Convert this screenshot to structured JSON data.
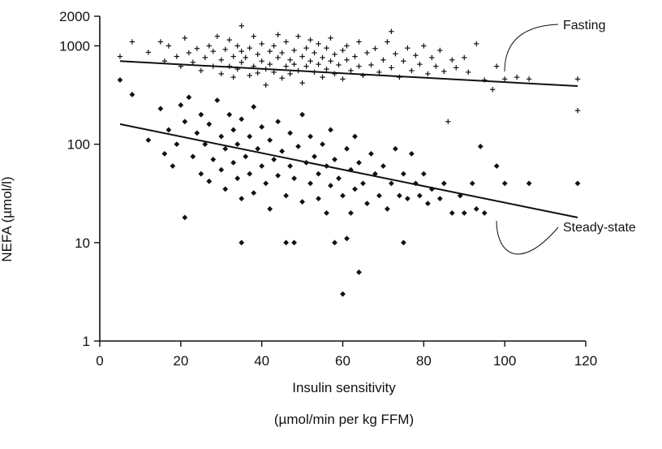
{
  "chart_data": {
    "type": "scatter",
    "title": "",
    "xlabel": "Insulin sensitivity",
    "xlabel_unit": "(µmol/min per kg FFM)",
    "ylabel": "NEFA (µmol/l)",
    "xlim": [
      0,
      120
    ],
    "ylim": [
      1,
      2000
    ],
    "yscale": "log",
    "x_ticks": [
      "0",
      "20",
      "40",
      "60",
      "80",
      "100",
      "120"
    ],
    "y_ticks": [
      "1",
      "10",
      "100",
      "1000",
      "2000"
    ],
    "grid": false,
    "annotations": [
      {
        "text": "Fasting",
        "series": "Fasting"
      },
      {
        "text": "Steady-state",
        "series": "Steady-state"
      }
    ],
    "series": [
      {
        "name": "Fasting",
        "marker": "plus",
        "fit_line": [
          [
            5,
            700
          ],
          [
            118,
            390
          ]
        ],
        "points": [
          [
            5,
            780
          ],
          [
            8,
            1100
          ],
          [
            12,
            860
          ],
          [
            15,
            1100
          ],
          [
            16,
            700
          ],
          [
            17,
            1000
          ],
          [
            19,
            780
          ],
          [
            20,
            620
          ],
          [
            21,
            1200
          ],
          [
            22,
            850
          ],
          [
            23,
            680
          ],
          [
            24,
            940
          ],
          [
            25,
            560
          ],
          [
            26,
            760
          ],
          [
            27,
            1000
          ],
          [
            28,
            620
          ],
          [
            28,
            880
          ],
          [
            29,
            1250
          ],
          [
            30,
            520
          ],
          [
            30,
            720
          ],
          [
            31,
            920
          ],
          [
            32,
            620
          ],
          [
            32,
            1150
          ],
          [
            33,
            480
          ],
          [
            33,
            780
          ],
          [
            34,
            1000
          ],
          [
            34,
            580
          ],
          [
            35,
            880
          ],
          [
            35,
            680
          ],
          [
            35,
            1600
          ],
          [
            36,
            760
          ],
          [
            37,
            500
          ],
          [
            37,
            950
          ],
          [
            38,
            620
          ],
          [
            38,
            1250
          ],
          [
            39,
            820
          ],
          [
            39,
            530
          ],
          [
            40,
            700
          ],
          [
            40,
            1050
          ],
          [
            41,
            580
          ],
          [
            41,
            400
          ],
          [
            42,
            880
          ],
          [
            42,
            650
          ],
          [
            43,
            1000
          ],
          [
            43,
            540
          ],
          [
            44,
            760
          ],
          [
            44,
            1300
          ],
          [
            45,
            470
          ],
          [
            45,
            850
          ],
          [
            46,
            620
          ],
          [
            46,
            1100
          ],
          [
            47,
            720
          ],
          [
            47,
            520
          ],
          [
            48,
            900
          ],
          [
            48,
            650
          ],
          [
            49,
            1250
          ],
          [
            49,
            560
          ],
          [
            50,
            780
          ],
          [
            50,
            420
          ],
          [
            51,
            950
          ],
          [
            51,
            620
          ],
          [
            52,
            700
          ],
          [
            52,
            1150
          ],
          [
            53,
            540
          ],
          [
            53,
            850
          ],
          [
            54,
            650
          ],
          [
            54,
            1050
          ],
          [
            55,
            480
          ],
          [
            55,
            760
          ],
          [
            56,
            950
          ],
          [
            56,
            580
          ],
          [
            57,
            700
          ],
          [
            57,
            1200
          ],
          [
            58,
            520
          ],
          [
            58,
            820
          ],
          [
            59,
            640
          ],
          [
            60,
            900
          ],
          [
            60,
            460
          ],
          [
            61,
            720
          ],
          [
            61,
            1000
          ],
          [
            62,
            560
          ],
          [
            63,
            780
          ],
          [
            64,
            620
          ],
          [
            64,
            1100
          ],
          [
            65,
            500
          ],
          [
            66,
            850
          ],
          [
            67,
            640
          ],
          [
            68,
            940
          ],
          [
            69,
            540
          ],
          [
            70,
            720
          ],
          [
            71,
            1100
          ],
          [
            72,
            1400
          ],
          [
            72,
            600
          ],
          [
            73,
            830
          ],
          [
            74,
            480
          ],
          [
            75,
            700
          ],
          [
            76,
            950
          ],
          [
            77,
            560
          ],
          [
            78,
            800
          ],
          [
            79,
            650
          ],
          [
            80,
            1000
          ],
          [
            81,
            520
          ],
          [
            82,
            760
          ],
          [
            83,
            620
          ],
          [
            84,
            900
          ],
          [
            85,
            550
          ],
          [
            86,
            170
          ],
          [
            87,
            720
          ],
          [
            88,
            600
          ],
          [
            90,
            760
          ],
          [
            91,
            540
          ],
          [
            93,
            1050
          ],
          [
            95,
            450
          ],
          [
            97,
            360
          ],
          [
            98,
            620
          ],
          [
            100,
            460
          ],
          [
            103,
            480
          ],
          [
            106,
            460
          ],
          [
            118,
            220
          ],
          [
            118,
            460
          ]
        ]
      },
      {
        "name": "Steady-state",
        "marker": "diamond",
        "fit_line": [
          [
            5,
            160
          ],
          [
            118,
            18
          ]
        ],
        "points": [
          [
            5,
            450
          ],
          [
            8,
            320
          ],
          [
            12,
            110
          ],
          [
            15,
            230
          ],
          [
            16,
            80
          ],
          [
            17,
            140
          ],
          [
            18,
            60
          ],
          [
            19,
            100
          ],
          [
            20,
            250
          ],
          [
            21,
            170
          ],
          [
            21,
            18
          ],
          [
            22,
            300
          ],
          [
            23,
            75
          ],
          [
            24,
            130
          ],
          [
            25,
            50
          ],
          [
            25,
            200
          ],
          [
            26,
            100
          ],
          [
            27,
            42
          ],
          [
            27,
            160
          ],
          [
            28,
            70
          ],
          [
            29,
            280
          ],
          [
            30,
            120
          ],
          [
            30,
            55
          ],
          [
            31,
            35
          ],
          [
            31,
            90
          ],
          [
            32,
            200
          ],
          [
            33,
            65
          ],
          [
            33,
            140
          ],
          [
            34,
            45
          ],
          [
            34,
            100
          ],
          [
            35,
            10
          ],
          [
            35,
            28
          ],
          [
            35,
            180
          ],
          [
            36,
            75
          ],
          [
            37,
            120
          ],
          [
            37,
            50
          ],
          [
            38,
            240
          ],
          [
            38,
            32
          ],
          [
            39,
            90
          ],
          [
            40,
            60
          ],
          [
            40,
            150
          ],
          [
            41,
            40
          ],
          [
            42,
            110
          ],
          [
            42,
            22
          ],
          [
            43,
            70
          ],
          [
            44,
            170
          ],
          [
            44,
            48
          ],
          [
            45,
            85
          ],
          [
            46,
            30
          ],
          [
            46,
            10
          ],
          [
            47,
            130
          ],
          [
            47,
            60
          ],
          [
            48,
            10
          ],
          [
            48,
            45
          ],
          [
            49,
            95
          ],
          [
            50,
            26
          ],
          [
            50,
            200
          ],
          [
            51,
            65
          ],
          [
            52,
            40
          ],
          [
            52,
            120
          ],
          [
            53,
            75
          ],
          [
            54,
            28
          ],
          [
            54,
            50
          ],
          [
            55,
            100
          ],
          [
            56,
            20
          ],
          [
            56,
            60
          ],
          [
            57,
            38
          ],
          [
            57,
            140
          ],
          [
            58,
            70
          ],
          [
            58,
            10
          ],
          [
            59,
            45
          ],
          [
            60,
            30
          ],
          [
            60,
            3
          ],
          [
            61,
            90
          ],
          [
            61,
            11
          ],
          [
            62,
            55
          ],
          [
            62,
            20
          ],
          [
            63,
            35
          ],
          [
            63,
            120
          ],
          [
            64,
            5
          ],
          [
            64,
            65
          ],
          [
            65,
            40
          ],
          [
            66,
            25
          ],
          [
            67,
            80
          ],
          [
            68,
            50
          ],
          [
            69,
            30
          ],
          [
            70,
            60
          ],
          [
            71,
            22
          ],
          [
            72,
            40
          ],
          [
            73,
            90
          ],
          [
            74,
            30
          ],
          [
            75,
            50
          ],
          [
            75,
            10
          ],
          [
            76,
            28
          ],
          [
            77,
            80
          ],
          [
            78,
            40
          ],
          [
            79,
            30
          ],
          [
            80,
            50
          ],
          [
            81,
            25
          ],
          [
            82,
            35
          ],
          [
            84,
            28
          ],
          [
            85,
            40
          ],
          [
            87,
            20
          ],
          [
            89,
            30
          ],
          [
            90,
            20
          ],
          [
            92,
            40
          ],
          [
            93,
            22
          ],
          [
            94,
            95
          ],
          [
            95,
            20
          ],
          [
            98,
            60
          ],
          [
            100,
            40
          ],
          [
            106,
            40
          ],
          [
            118,
            40
          ]
        ]
      }
    ]
  }
}
